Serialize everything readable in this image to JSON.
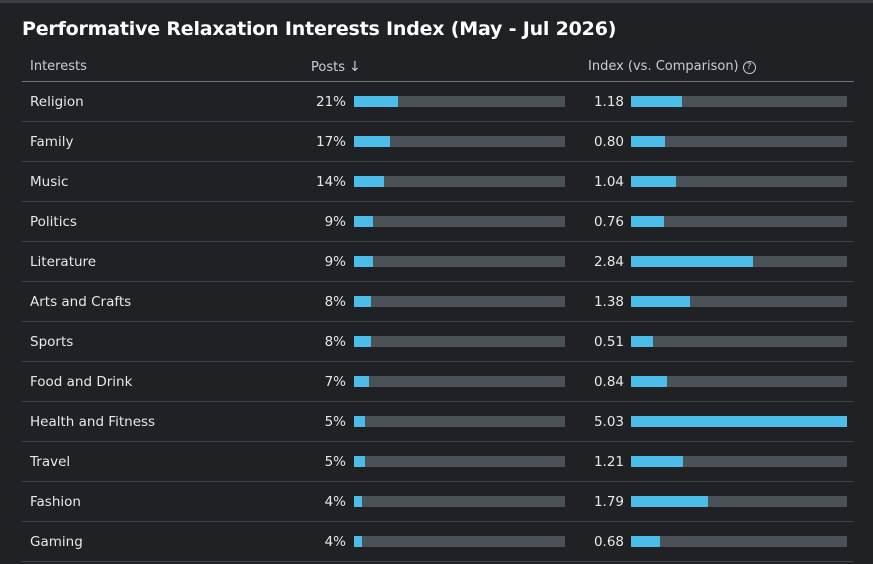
{
  "title": "Performative Relaxation Interests Index (May - Jul 2026)",
  "columns": {
    "interests": "Interests",
    "posts": "Posts",
    "index": "Index (vs. Comparison)"
  },
  "colors": {
    "accent": "#4bbde8",
    "track": "#4a5157",
    "background": "#1f2125"
  },
  "icons": {
    "sort": "arrow-down-icon",
    "help": "help-circle-icon"
  },
  "chart_data": {
    "type": "table",
    "title": "Performative Relaxation Interests Index (May - Jul 2026)",
    "rows": [
      {
        "name": "Religion",
        "posts": "21%",
        "posts_value": 21,
        "index": "1.18",
        "index_value": 1.18
      },
      {
        "name": "Family",
        "posts": "17%",
        "posts_value": 17,
        "index": "0.80",
        "index_value": 0.8
      },
      {
        "name": "Music",
        "posts": "14%",
        "posts_value": 14,
        "index": "1.04",
        "index_value": 1.04
      },
      {
        "name": "Politics",
        "posts": "9%",
        "posts_value": 9,
        "index": "0.76",
        "index_value": 0.76
      },
      {
        "name": "Literature",
        "posts": "9%",
        "posts_value": 9,
        "index": "2.84",
        "index_value": 2.84
      },
      {
        "name": "Arts and Crafts",
        "posts": "8%",
        "posts_value": 8,
        "index": "1.38",
        "index_value": 1.38
      },
      {
        "name": "Sports",
        "posts": "8%",
        "posts_value": 8,
        "index": "0.51",
        "index_value": 0.51
      },
      {
        "name": "Food and Drink",
        "posts": "7%",
        "posts_value": 7,
        "index": "0.84",
        "index_value": 0.84
      },
      {
        "name": "Health and Fitness",
        "posts": "5%",
        "posts_value": 5,
        "index": "5.03",
        "index_value": 5.03
      },
      {
        "name": "Travel",
        "posts": "5%",
        "posts_value": 5,
        "index": "1.21",
        "index_value": 1.21
      },
      {
        "name": "Fashion",
        "posts": "4%",
        "posts_value": 4,
        "index": "1.79",
        "index_value": 1.79
      },
      {
        "name": "Gaming",
        "posts": "4%",
        "posts_value": 4,
        "index": "0.68",
        "index_value": 0.68
      }
    ],
    "posts_max": 100,
    "index_max": 5.03
  }
}
